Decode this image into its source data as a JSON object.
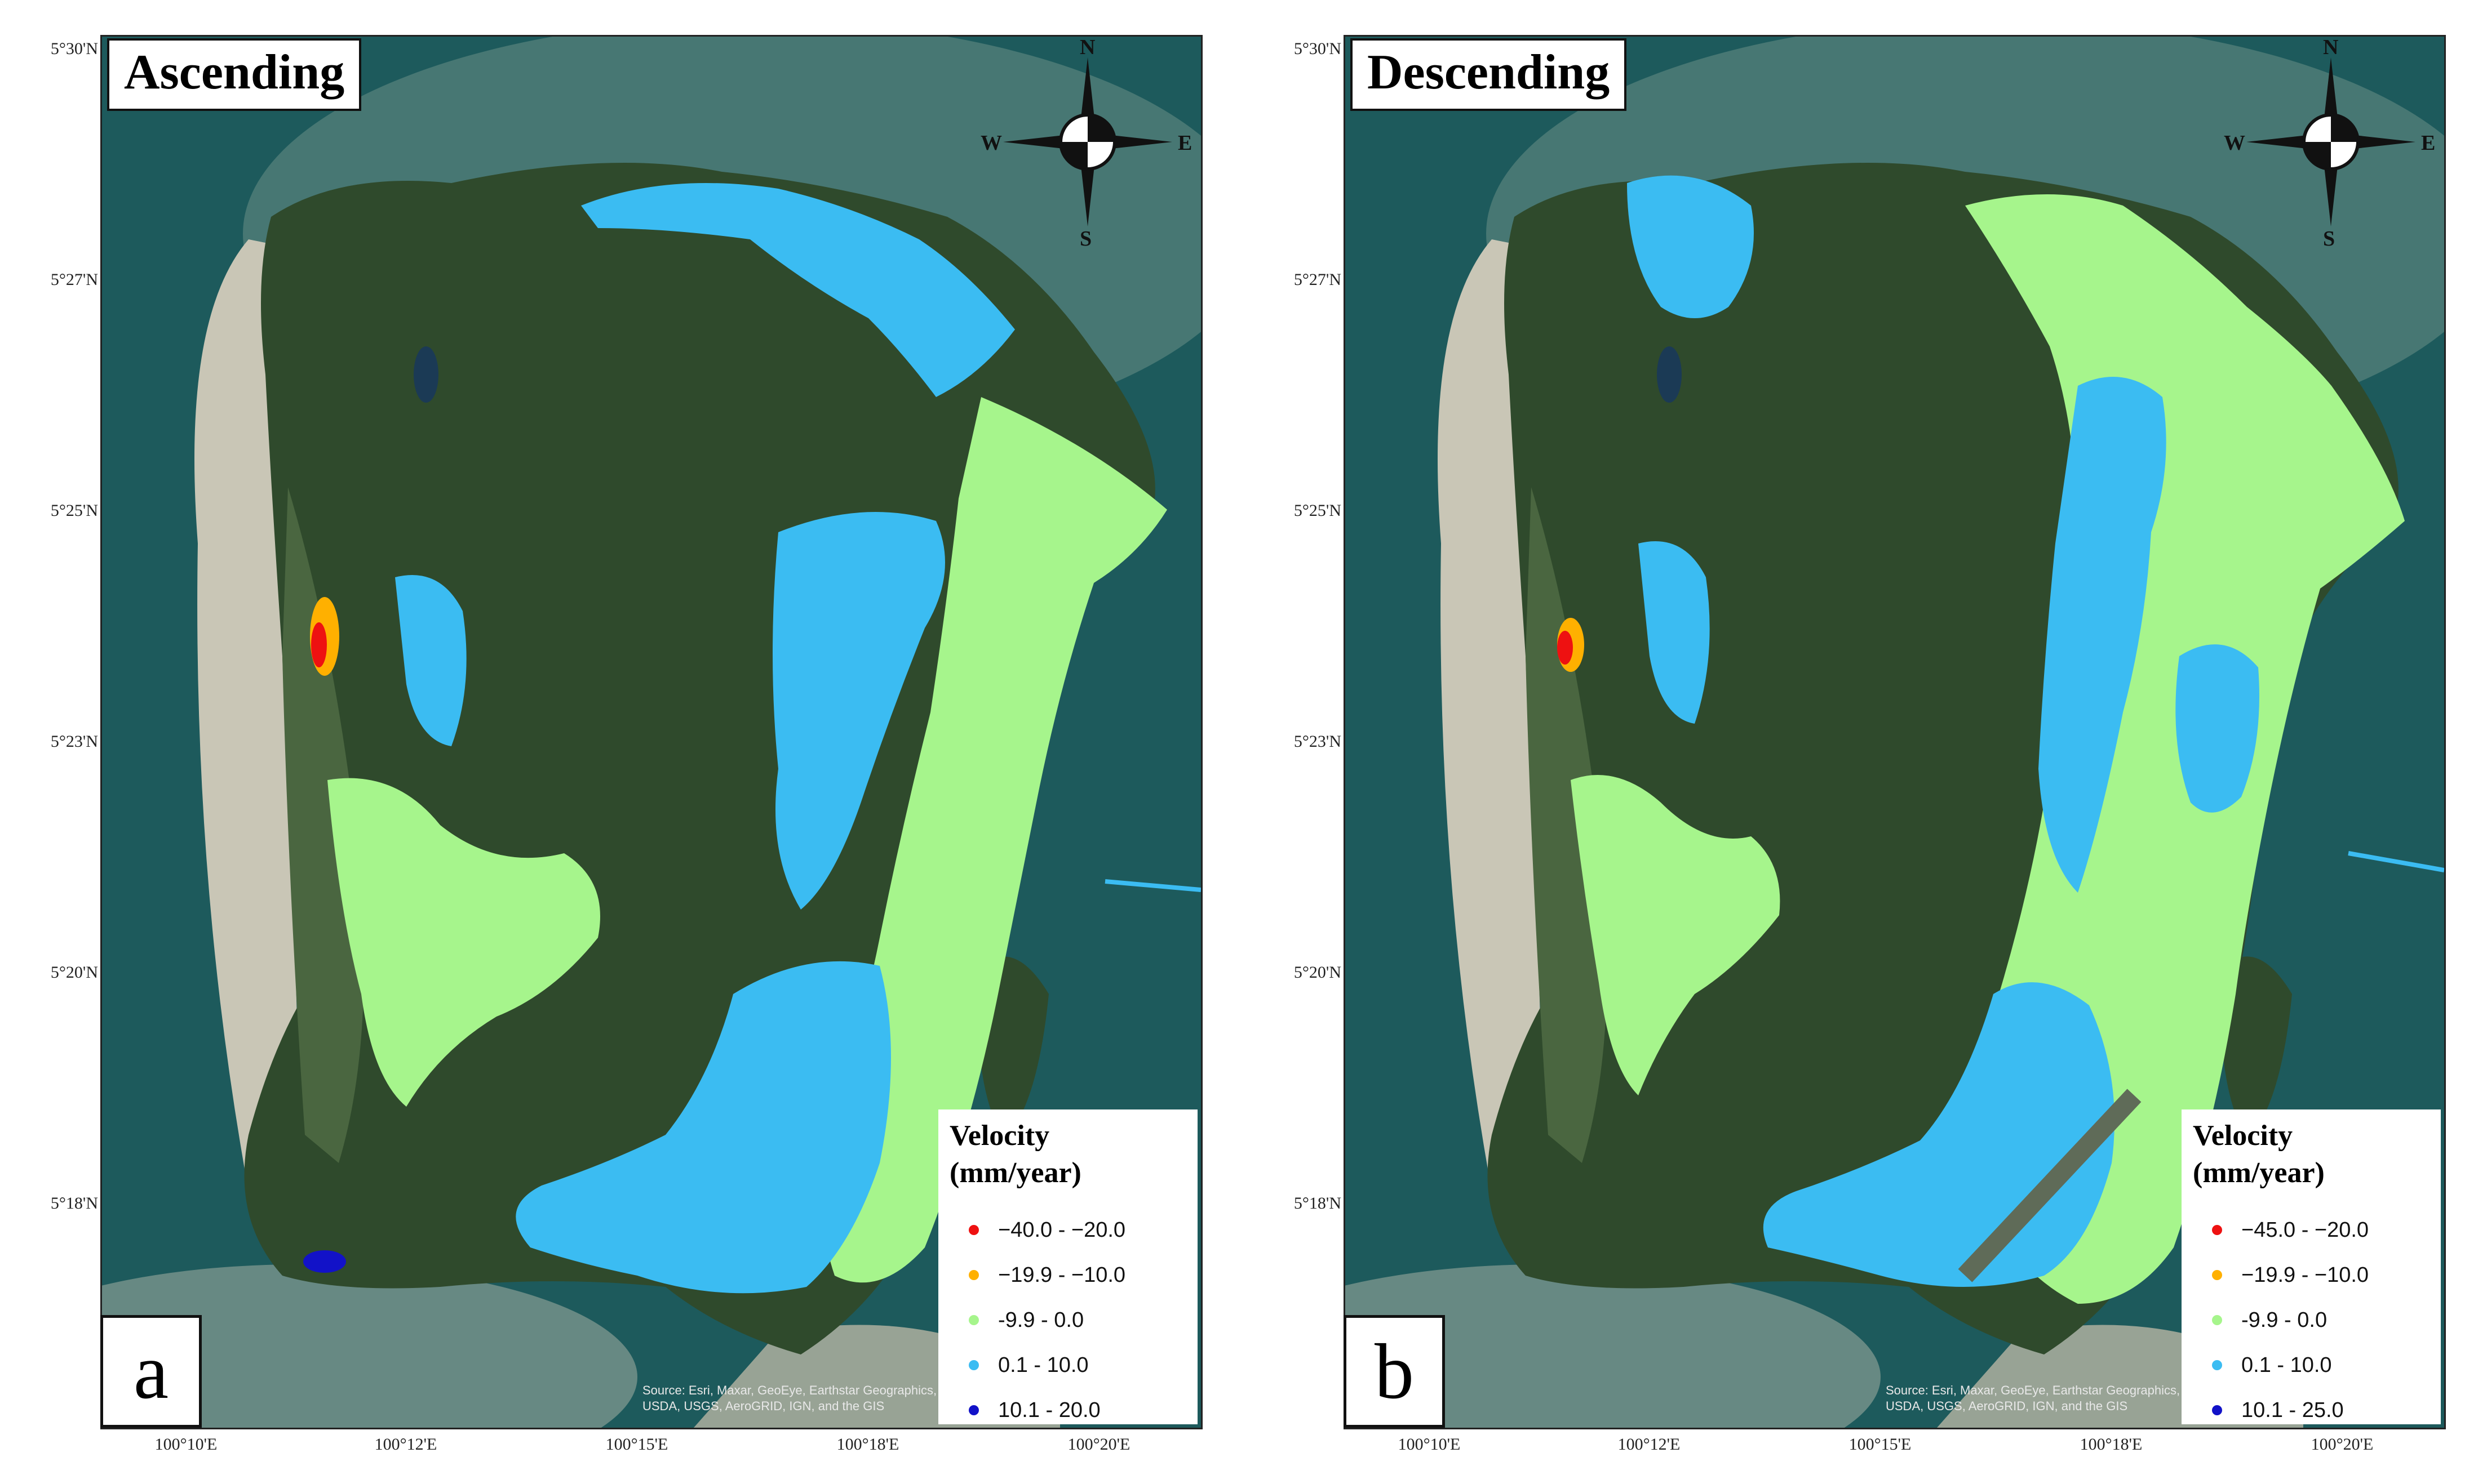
{
  "panels": [
    {
      "id": "a",
      "title": "Ascending",
      "label": "a",
      "lat_ticks": [
        "5°30'N",
        "5°27'N",
        "5°25'N",
        "5°23'N",
        "5°20'N",
        "5°18'N"
      ],
      "lon_ticks": [
        "100°10'E",
        "100°12'E",
        "100°15'E",
        "100°18'E",
        "100°20'E"
      ],
      "compass": {
        "n": "N",
        "s": "S",
        "e": "E",
        "w": "W"
      },
      "legend": {
        "title_line1": "Velocity",
        "title_line2": "(mm/year)",
        "classes": [
          {
            "label": "−40.0 - −20.0",
            "color": "#ee1111"
          },
          {
            "label": "−19.9 - −10.0",
            "color": "#ffb000"
          },
          {
            "label": "-9.9 - 0.0",
            "color": "#a6f58c"
          },
          {
            "label": "0.1 - 10.0",
            "color": "#3bbcf2"
          },
          {
            "label": "10.1 - 20.0",
            "color": "#1212c8"
          }
        ]
      },
      "attribution_line1": "Source: Esri, Maxar, GeoEye, Earthstar Geographics,",
      "attribution_line2": "USDA, USGS, AeroGRID, IGN, and the GIS"
    },
    {
      "id": "b",
      "title": "Descending",
      "label": "b",
      "lat_ticks": [
        "5°30'N",
        "5°27'N",
        "5°25'N",
        "5°23'N",
        "5°20'N",
        "5°18'N"
      ],
      "lon_ticks": [
        "100°10'E",
        "100°12'E",
        "100°15'E",
        "100°18'E",
        "100°20'E"
      ],
      "compass": {
        "n": "N",
        "s": "S",
        "e": "E",
        "w": "W"
      },
      "legend": {
        "title_line1": "Velocity",
        "title_line2": "(mm/year)",
        "classes": [
          {
            "label": "−45.0 - −20.0",
            "color": "#ee1111"
          },
          {
            "label": "−19.9 - −10.0",
            "color": "#ffb000"
          },
          {
            "label": "-9.9 - 0.0",
            "color": "#a6f58c"
          },
          {
            "label": "0.1 - 10.0",
            "color": "#3bbcf2"
          },
          {
            "label": "10.1 - 25.0",
            "color": "#1212c8"
          }
        ]
      },
      "attribution_line1": "Source: Esri, Maxar, GeoEye, Earthstar Geographics,",
      "attribution_line2": "USDA, USGS, AeroGRID, IGN, and the GIS"
    }
  ],
  "colors": {
    "sea": "#1d5a5c",
    "shallow_sea": "#6a8f86",
    "sand": "#c9c6b6",
    "forest": "#2f4a2c",
    "forest_light": "#4a6640",
    "class_red": "#ee1111",
    "class_orange": "#ffb000",
    "class_green": "#a6f58c",
    "class_cyan": "#3bbcf2",
    "class_blue": "#1212c8"
  }
}
